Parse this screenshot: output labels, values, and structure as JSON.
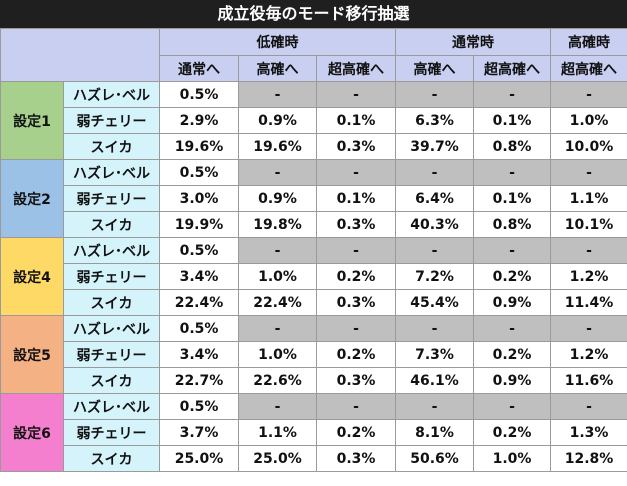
{
  "title": "成立役毎のモード移行抽選",
  "group_headers": [
    {
      "label": "低確時",
      "span": 3
    },
    {
      "label": "通常時",
      "span": 2
    },
    {
      "label": "高確時",
      "span": 1
    }
  ],
  "sub_headers": [
    "通常へ",
    "高確へ",
    "超高確へ",
    "高確へ",
    "超高確へ",
    "超高確へ"
  ],
  "colors": {
    "header_bg": "#c9cff0",
    "role_bg": "#d5f3fb",
    "gray_cell": "#bfbfbf",
    "title_bg": "#1f1f1f"
  },
  "settings": [
    {
      "label": "設定1",
      "color": "#a8d08d",
      "rows": [
        {
          "role": "ハズレ･ベル",
          "values": [
            "0.5%",
            "-",
            "-",
            "-",
            "-",
            "-"
          ]
        },
        {
          "role": "弱チェリー",
          "values": [
            "2.9%",
            "0.9%",
            "0.1%",
            "6.3%",
            "0.1%",
            "1.0%"
          ]
        },
        {
          "role": "スイカ",
          "values": [
            "19.6%",
            "19.6%",
            "0.3%",
            "39.7%",
            "0.8%",
            "10.0%"
          ]
        }
      ]
    },
    {
      "label": "設定2",
      "color": "#9bc2e6",
      "rows": [
        {
          "role": "ハズレ･ベル",
          "values": [
            "0.5%",
            "-",
            "-",
            "-",
            "-",
            "-"
          ]
        },
        {
          "role": "弱チェリー",
          "values": [
            "3.0%",
            "0.9%",
            "0.1%",
            "6.4%",
            "0.1%",
            "1.1%"
          ]
        },
        {
          "role": "スイカ",
          "values": [
            "19.9%",
            "19.8%",
            "0.3%",
            "40.3%",
            "0.8%",
            "10.1%"
          ]
        }
      ]
    },
    {
      "label": "設定4",
      "color": "#ffd966",
      "rows": [
        {
          "role": "ハズレ･ベル",
          "values": [
            "0.5%",
            "-",
            "-",
            "-",
            "-",
            "-"
          ]
        },
        {
          "role": "弱チェリー",
          "values": [
            "3.4%",
            "1.0%",
            "0.2%",
            "7.2%",
            "0.2%",
            "1.2%"
          ]
        },
        {
          "role": "スイカ",
          "values": [
            "22.4%",
            "22.4%",
            "0.3%",
            "45.4%",
            "0.9%",
            "11.4%"
          ]
        }
      ]
    },
    {
      "label": "設定5",
      "color": "#f4b183",
      "rows": [
        {
          "role": "ハズレ･ベル",
          "values": [
            "0.5%",
            "-",
            "-",
            "-",
            "-",
            "-"
          ]
        },
        {
          "role": "弱チェリー",
          "values": [
            "3.4%",
            "1.0%",
            "0.2%",
            "7.3%",
            "0.2%",
            "1.2%"
          ]
        },
        {
          "role": "スイカ",
          "values": [
            "22.7%",
            "22.6%",
            "0.3%",
            "46.1%",
            "0.9%",
            "11.6%"
          ]
        }
      ]
    },
    {
      "label": "設定6",
      "color": "#f57fcf",
      "rows": [
        {
          "role": "ハズレ･ベル",
          "values": [
            "0.5%",
            "-",
            "-",
            "-",
            "-",
            "-"
          ]
        },
        {
          "role": "弱チェリー",
          "values": [
            "3.7%",
            "1.1%",
            "0.2%",
            "8.1%",
            "0.2%",
            "1.3%"
          ]
        },
        {
          "role": "スイカ",
          "values": [
            "25.0%",
            "25.0%",
            "0.3%",
            "50.6%",
            "1.0%",
            "12.8%"
          ]
        }
      ]
    }
  ]
}
